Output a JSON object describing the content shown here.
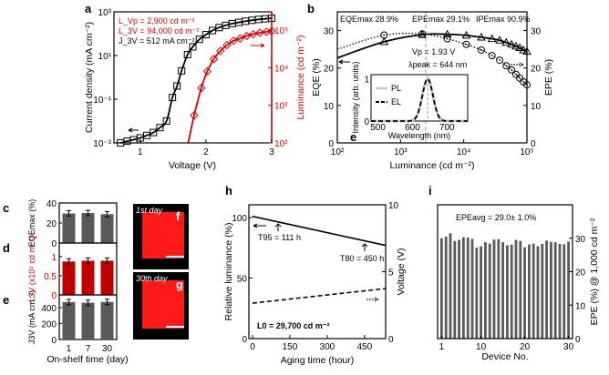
{
  "colors": {
    "red": "#d40000",
    "dark_red": "#c00000",
    "bar_gray": "#5a5a5a",
    "image_red": "#ff1a1a"
  },
  "chart_data": [
    {
      "panel": "a",
      "label": "a",
      "type": "line",
      "xlabel": "Voltage (V)",
      "ylabel": "Current density (mA cm⁻²)",
      "y2label": "Luminance (cd m⁻²)",
      "xlim": [
        0.6,
        3
      ],
      "ylim": [
        0.001,
        1000
      ],
      "y2lim": [
        100,
        250000
      ],
      "yscale": "log",
      "y2scale": "log",
      "xticks": [
        "1",
        "2",
        "3"
      ],
      "yticks": [
        "10⁻³",
        "10⁻¹",
        "10¹",
        "10³"
      ],
      "y2ticks": [
        "10²",
        "10³",
        "10⁴",
        "10⁵"
      ],
      "annotations": [
        "L_Vp = 2,900 cd m⁻²",
        "L_3V = 94,000 cd m⁻²",
        "J_3V = 512 mA cm⁻²"
      ],
      "series": [
        {
          "axis": "left",
          "marker": "square",
          "color": "#000000",
          "points": [
            [
              0.7,
              0.001
            ],
            [
              0.8,
              0.0012
            ],
            [
              0.9,
              0.0014
            ],
            [
              1.0,
              0.0017
            ],
            [
              1.1,
              0.0022
            ],
            [
              1.2,
              0.003
            ],
            [
              1.3,
              0.005
            ],
            [
              1.4,
              0.01
            ],
            [
              1.49,
              0.12
            ],
            [
              1.56,
              0.4
            ],
            [
              1.63,
              2
            ],
            [
              1.72,
              11
            ],
            [
              1.8,
              25
            ],
            [
              1.9,
              55
            ],
            [
              2.0,
              90
            ],
            [
              2.1,
              140
            ],
            [
              2.2,
              190
            ],
            [
              2.3,
              240
            ],
            [
              2.4,
              290
            ],
            [
              2.5,
              330
            ],
            [
              2.6,
              370
            ],
            [
              2.7,
              410
            ],
            [
              2.8,
              450
            ],
            [
              2.9,
              480
            ],
            [
              3.0,
              512
            ]
          ]
        },
        {
          "axis": "right",
          "marker": "diamond",
          "color": "#d40000",
          "points": [
            [
              1.82,
              540
            ],
            [
              1.93,
              2900
            ],
            [
              2.02,
              8000
            ],
            [
              2.12,
              17000
            ],
            [
              2.22,
              28000
            ],
            [
              2.32,
              40000
            ],
            [
              2.42,
              52000
            ],
            [
              2.52,
              60000
            ],
            [
              2.62,
              70000
            ],
            [
              2.72,
              78000
            ],
            [
              2.82,
              85000
            ],
            [
              2.92,
              90000
            ],
            [
              3.0,
              94000
            ]
          ],
          "line_start": [
            1.73,
            100
          ]
        }
      ]
    },
    {
      "panel": "b",
      "label": "b",
      "type": "line",
      "xlabel": "Luminance (cd m⁻²)",
      "ylabel": "EQE (%)",
      "y2label": "EPE (%)",
      "xscale": "log",
      "xlim": [
        100,
        100000
      ],
      "ylim": [
        0,
        35
      ],
      "y2lim": [
        0,
        35
      ],
      "xticks": [
        "10²",
        "10³",
        "10⁴",
        "10⁵"
      ],
      "yticks": [
        "0",
        "10",
        "20",
        "30"
      ],
      "annotations": [
        "EQEmax 28.9%",
        "EPEmax 29.1%",
        "IPEmax 90.9%",
        "Vp = 1.93 V",
        "λpeak = 644 nm"
      ],
      "series": [
        {
          "name": "EQE",
          "axis": "left",
          "marker": "triangle",
          "style": "solid",
          "points": [
            [
              100,
              22.7
            ],
            [
              550,
              27
            ],
            [
              2200,
              28.9
            ],
            [
              5500,
              29
            ],
            [
              11000,
              28.7
            ],
            [
              19000,
              28.2
            ],
            [
              28000,
              27.8
            ],
            [
              37000,
              27.4
            ],
            [
              47000,
              26.8
            ],
            [
              57000,
              26.3
            ],
            [
              67000,
              25.8
            ],
            [
              77000,
              25.4
            ],
            [
              88000,
              24.8
            ],
            [
              100000,
              24.4
            ]
          ]
        },
        {
          "name": "EPE",
          "axis": "right",
          "marker": "circle",
          "style": "dotted",
          "points": [
            [
              100,
              25
            ],
            [
              550,
              28.8
            ],
            [
              2200,
              29.1
            ],
            [
              5500,
              27.8
            ],
            [
              11000,
              26.3
            ],
            [
              19000,
              24.8
            ],
            [
              28000,
              23.3
            ],
            [
              37000,
              22.1
            ],
            [
              47000,
              20.6
            ],
            [
              57000,
              19.5
            ],
            [
              67000,
              18.3
            ],
            [
              77000,
              17.3
            ],
            [
              88000,
              16.3
            ],
            [
              100000,
              15.5
            ]
          ]
        }
      ]
    },
    {
      "panel": "inset",
      "label": "e",
      "type": "line",
      "xlabel": "Wavelength (nm)",
      "ylabel": "Intensity (arb. units)",
      "xlim": [
        480,
        760
      ],
      "ylim": [
        0,
        1.1
      ],
      "xticks": [
        "500",
        "600",
        "700"
      ],
      "yticks": [
        "0",
        "1"
      ],
      "legend": [
        "PL",
        "EL"
      ],
      "peak_nm": 644,
      "fwhm_nm": 36
    },
    {
      "panel": "c",
      "label": "c",
      "type": "bar",
      "ylabel": "EQEmax (%)",
      "categories": [
        "1",
        "7",
        "30"
      ],
      "values": [
        29.5,
        30,
        28.8
      ],
      "ylim": [
        0,
        40
      ],
      "yticks": [
        "0",
        "20",
        "40"
      ]
    },
    {
      "panel": "d",
      "label": "d",
      "type": "bar",
      "ylabel": "L3V (x10⁵ cd m⁻²)",
      "categories": [
        "1",
        "7",
        "30"
      ],
      "values": [
        0.87,
        0.89,
        0.89
      ],
      "ylim": [
        0,
        1.35
      ],
      "yticks": [
        "0",
        "0.5",
        "1"
      ]
    },
    {
      "panel": "e",
      "label": "e",
      "type": "bar",
      "ylabel": "J3V (mA cm⁻²)",
      "xlabel": "On-shelf time (day)",
      "categories": [
        "1",
        "7",
        "30"
      ],
      "values": [
        470,
        462,
        472
      ],
      "ylim": [
        0,
        560
      ],
      "yticks": [
        "0",
        "200",
        "400"
      ]
    },
    {
      "panel": "h",
      "label": "h",
      "type": "line",
      "xlabel": "Aging time (hour)",
      "ylabel": "Relative luminance (%)",
      "y2label": "Voltage (V)",
      "xlim": [
        0,
        534
      ],
      "ylim": [
        0,
        110
      ],
      "y2lim": [
        0,
        10
      ],
      "xticks": [
        "0",
        "150",
        "300",
        "450"
      ],
      "yticks": [
        "0",
        "50",
        "100"
      ],
      "y2ticks": [
        "0",
        "5",
        "10"
      ],
      "annotations": [
        "T95 = 111 h",
        "T80 = 450 h",
        "L0 = 29,700 cd m⁻²"
      ],
      "series": [
        {
          "axis": "left",
          "style": "solid",
          "points": [
            [
              0,
              101
            ],
            [
              534,
              77
            ]
          ]
        },
        {
          "axis": "right",
          "style": "dashed",
          "points": [
            [
              0,
              2.65
            ],
            [
              534,
              3.74
            ]
          ]
        }
      ]
    },
    {
      "panel": "i",
      "label": "i",
      "type": "bar",
      "xlabel": "Device No.",
      "ylabel": "EPE (%) @ 1,000 cd m⁻²",
      "ylim": [
        0,
        40
      ],
      "yticks": [
        "0",
        "10",
        "20",
        "30"
      ],
      "xticks": [
        "1",
        "10",
        "20",
        "30"
      ],
      "annotation": "EPEavg = 29.0± 1.0%",
      "values": [
        30,
        30.5,
        31.5,
        29.2,
        29.5,
        30.3,
        30.2,
        29.8,
        27.2,
        27.6,
        28.8,
        28.4,
        29.6,
        29.7,
        28.8,
        27.9,
        28.1,
        29.5,
        29.2,
        27.3,
        28.1,
        28.4,
        27.6,
        28.3,
        29.3,
        28.9,
        28.8,
        28.3,
        28.2,
        29.0
      ]
    }
  ],
  "images": [
    {
      "label": "f",
      "caption": "1st day"
    },
    {
      "label": "g",
      "caption": "30th day"
    }
  ]
}
